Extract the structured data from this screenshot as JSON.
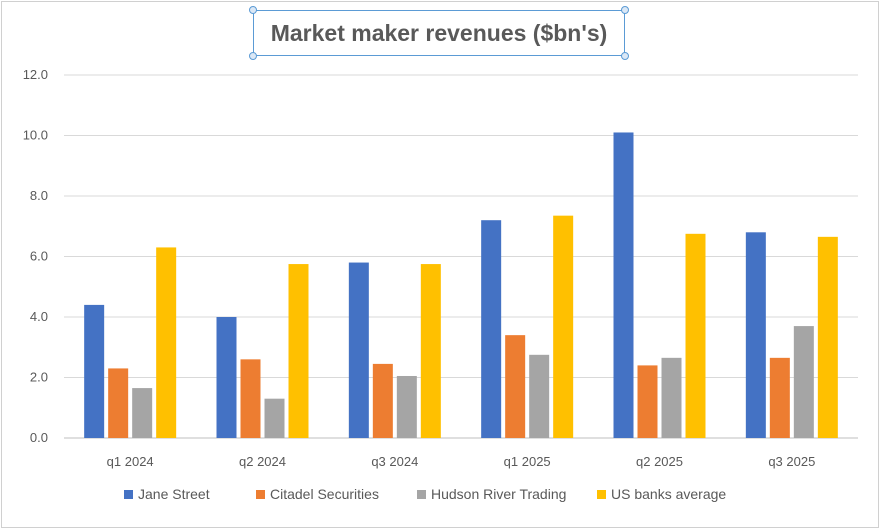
{
  "chart_data": {
    "type": "bar",
    "title": "Market maker revenues ($bn's)",
    "xlabel": "",
    "ylabel": "",
    "categories": [
      "q1 2024",
      "q2 2024",
      "q3 2024",
      "q1 2025",
      "q2 2025",
      "q3 2025"
    ],
    "y_ticks": [
      "0.0",
      "2.0",
      "4.0",
      "6.0",
      "8.0",
      "10.0",
      "12.0"
    ],
    "ylim": [
      0,
      12
    ],
    "grid": true,
    "legend_position": "bottom",
    "series": [
      {
        "name": "Jane Street",
        "color": "#4472c4",
        "values": [
          4.4,
          4.0,
          5.8,
          7.2,
          10.1,
          6.8
        ]
      },
      {
        "name": "Citadel Securities",
        "color": "#ed7d31",
        "values": [
          2.3,
          2.6,
          2.45,
          3.4,
          2.4,
          2.65
        ]
      },
      {
        "name": "Hudson River Trading",
        "color": "#a5a5a5",
        "values": [
          1.65,
          1.3,
          2.05,
          2.75,
          2.65,
          3.7
        ]
      },
      {
        "name": "US banks average",
        "color": "#ffc000",
        "values": [
          6.3,
          5.75,
          5.75,
          7.35,
          6.75,
          6.65
        ]
      }
    ]
  }
}
